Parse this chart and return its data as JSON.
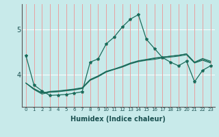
{
  "xlabel": "Humidex (Indice chaleur)",
  "ylabel": "",
  "bg_color": "#c8eaea",
  "grid_color_v": "#e8a0a0",
  "grid_color_h": "#ffffff",
  "line_color": "#1a6b5a",
  "x_values": [
    0,
    1,
    2,
    3,
    4,
    5,
    6,
    7,
    8,
    9,
    10,
    11,
    12,
    13,
    14,
    15,
    16,
    17,
    18,
    19,
    20,
    21,
    22,
    23
  ],
  "line1": [
    4.42,
    3.78,
    3.65,
    3.55,
    3.56,
    3.57,
    3.6,
    3.63,
    4.28,
    4.35,
    4.68,
    4.83,
    5.05,
    5.22,
    5.32,
    4.78,
    4.58,
    4.38,
    4.28,
    4.2,
    4.3,
    3.85,
    4.1,
    4.2
  ],
  "line2": [
    3.82,
    3.68,
    3.58,
    3.62,
    3.63,
    3.65,
    3.67,
    3.7,
    3.88,
    3.96,
    4.06,
    4.12,
    4.18,
    4.25,
    4.3,
    4.33,
    4.36,
    4.39,
    4.41,
    4.43,
    4.46,
    4.28,
    4.36,
    4.3
  ],
  "line3": [
    3.82,
    3.69,
    3.6,
    3.64,
    3.65,
    3.67,
    3.69,
    3.72,
    3.9,
    3.98,
    4.08,
    4.13,
    4.19,
    4.26,
    4.31,
    4.34,
    4.37,
    4.39,
    4.41,
    4.43,
    4.46,
    4.27,
    4.34,
    4.28
  ],
  "line4": [
    3.82,
    3.7,
    3.61,
    3.63,
    3.64,
    3.66,
    3.68,
    3.71,
    3.89,
    3.97,
    4.07,
    4.12,
    4.17,
    4.24,
    4.29,
    4.32,
    4.34,
    4.37,
    4.39,
    4.41,
    4.44,
    4.26,
    4.32,
    4.26
  ],
  "ylim": [
    3.3,
    5.55
  ],
  "yticks": [
    4,
    5
  ],
  "xlim": [
    -0.5,
    23.5
  ],
  "figsize": [
    3.2,
    2.0
  ],
  "dpi": 100
}
